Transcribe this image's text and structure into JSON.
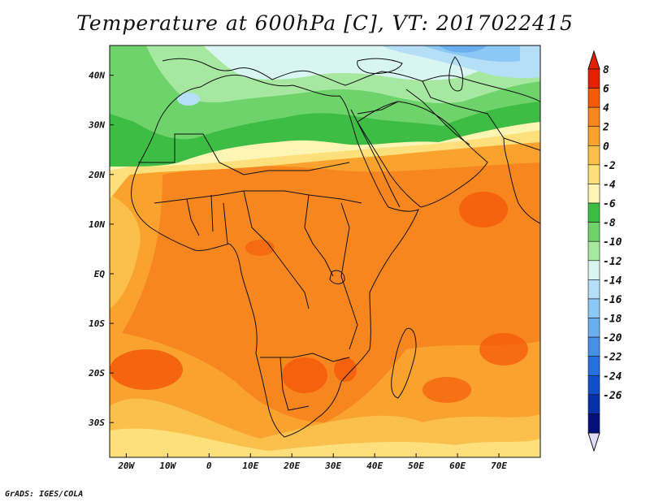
{
  "title": "Temperature at 600hPa [C], VT: 2017022415",
  "credit": "GrADS: IGES/COLA",
  "map": {
    "variable": "Temperature",
    "level": "600hPa",
    "units": "C",
    "valid_time": "2017022415",
    "lon_range": [
      -24,
      80
    ],
    "lat_range": [
      -37,
      46
    ],
    "lon_ticks": [
      {
        "value": -20,
        "label": "20W"
      },
      {
        "value": -10,
        "label": "10W"
      },
      {
        "value": 0,
        "label": "0"
      },
      {
        "value": 10,
        "label": "10E"
      },
      {
        "value": 20,
        "label": "20E"
      },
      {
        "value": 30,
        "label": "30E"
      },
      {
        "value": 40,
        "label": "40E"
      },
      {
        "value": 50,
        "label": "50E"
      },
      {
        "value": 60,
        "label": "60E"
      },
      {
        "value": 70,
        "label": "70E"
      }
    ],
    "lat_ticks": [
      {
        "value": 40,
        "label": "40N"
      },
      {
        "value": 30,
        "label": "30N"
      },
      {
        "value": 20,
        "label": "20N"
      },
      {
        "value": 10,
        "label": "10N"
      },
      {
        "value": 0,
        "label": "EQ"
      },
      {
        "value": -10,
        "label": "10S"
      },
      {
        "value": -20,
        "label": "20S"
      },
      {
        "value": -30,
        "label": "30S"
      }
    ]
  },
  "colorbar": {
    "levels": [
      "8",
      "6",
      "4",
      "2",
      "0",
      "-2",
      "-4",
      "-6",
      "-8",
      "-10",
      "-12",
      "-14",
      "-16",
      "-18",
      "-20",
      "-22",
      "-24",
      "-26"
    ],
    "colors": [
      "#e61f00",
      "#f55a0a",
      "#f7861e",
      "#f9a32e",
      "#fbc04c",
      "#fde07c",
      "#fdf5b4",
      "#3ebd45",
      "#6dd36a",
      "#a6e8a0",
      "#d8f5f1",
      "#b4dff7",
      "#8cc8f5",
      "#6aaef0",
      "#4690e8",
      "#2470dc",
      "#0f50c8",
      "#0631a8",
      "#05107a"
    ],
    "top_color": "#e61f00",
    "bottom_color": "#e0dcfa"
  }
}
